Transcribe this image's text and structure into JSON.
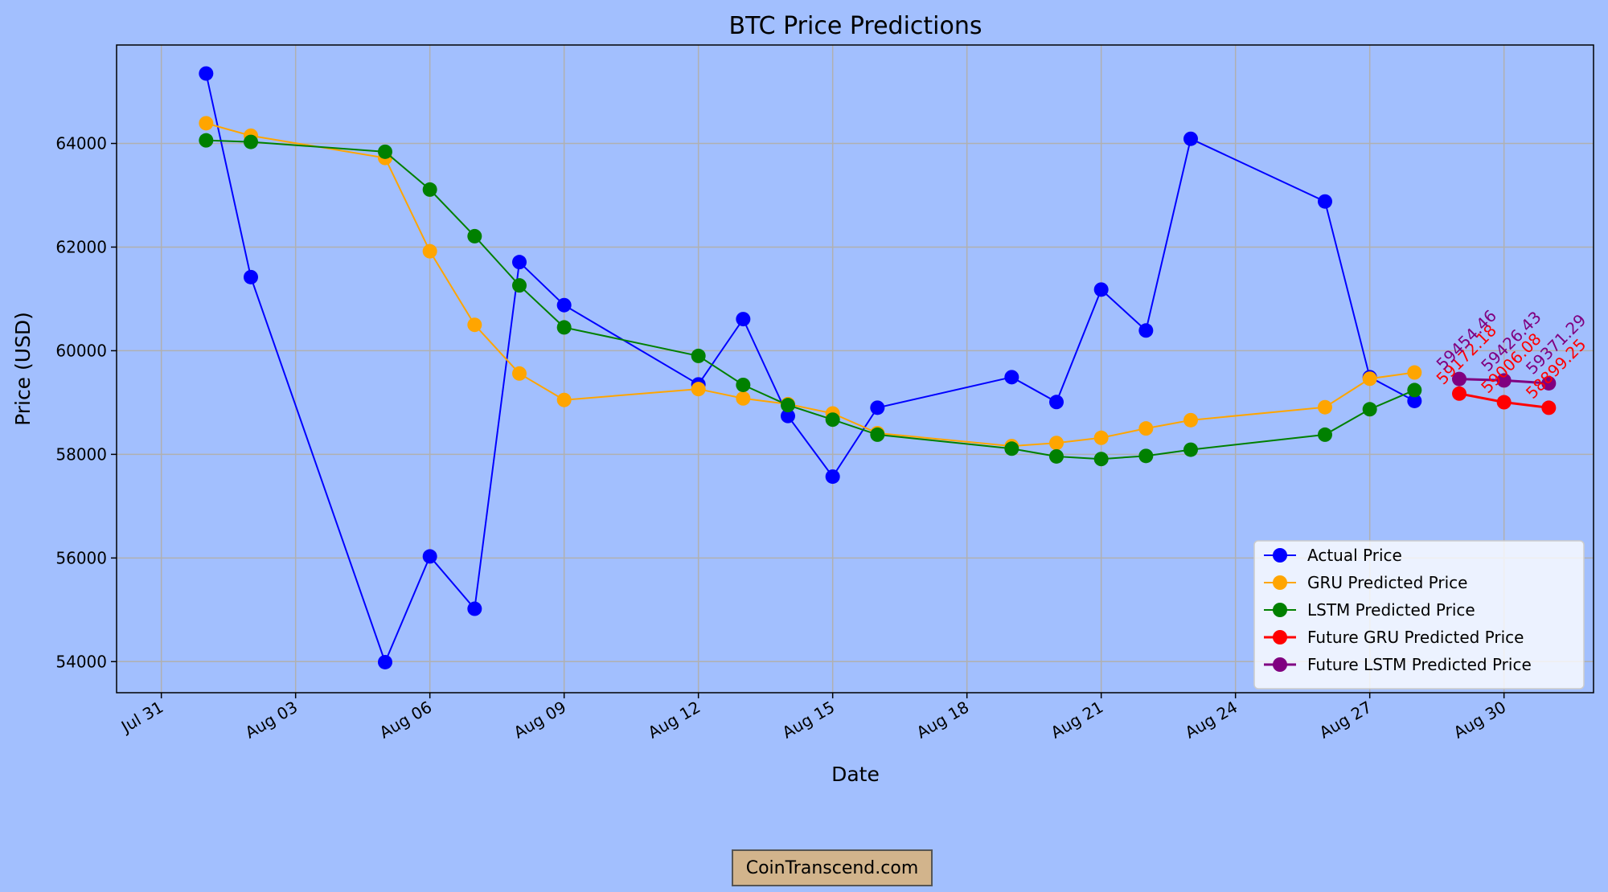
{
  "chart_data": {
    "type": "line",
    "title": "BTC Price Predictions",
    "xlabel": "Date",
    "ylabel": "Price (USD)",
    "grid": true,
    "legend_position": "bottom-right",
    "x_tick_labels": [
      "Jul 31",
      "Aug 03",
      "Aug 06",
      "Aug 09",
      "Aug 12",
      "Aug 15",
      "Aug 18",
      "Aug 21",
      "Aug 24",
      "Aug 27",
      "Aug 30"
    ],
    "x_tick_dates": [
      "2024-07-31",
      "2024-08-03",
      "2024-08-06",
      "2024-08-09",
      "2024-08-12",
      "2024-08-15",
      "2024-08-18",
      "2024-08-21",
      "2024-08-24",
      "2024-08-27",
      "2024-08-30"
    ],
    "xlim": [
      "2024-07-30",
      "2024-09-01"
    ],
    "y_ticks": [
      54000,
      56000,
      58000,
      60000,
      62000,
      64000
    ],
    "ylim": [
      53400,
      65900
    ],
    "series": [
      {
        "name": "Actual Price",
        "color": "#0000ff",
        "points": [
          [
            "2024-08-01",
            65350
          ],
          [
            "2024-08-02",
            61420
          ],
          [
            "2024-08-05",
            53990
          ],
          [
            "2024-08-06",
            56030
          ],
          [
            "2024-08-07",
            55020
          ],
          [
            "2024-08-08",
            61710
          ],
          [
            "2024-08-09",
            60880
          ],
          [
            "2024-08-12",
            59350
          ],
          [
            "2024-08-13",
            60610
          ],
          [
            "2024-08-14",
            58740
          ],
          [
            "2024-08-15",
            57570
          ],
          [
            "2024-08-16",
            58900
          ],
          [
            "2024-08-19",
            59490
          ],
          [
            "2024-08-20",
            59010
          ],
          [
            "2024-08-21",
            61180
          ],
          [
            "2024-08-22",
            60390
          ],
          [
            "2024-08-23",
            64090
          ],
          [
            "2024-08-26",
            62880
          ],
          [
            "2024-08-27",
            59490
          ],
          [
            "2024-08-28",
            59030
          ]
        ]
      },
      {
        "name": "GRU Predicted Price",
        "color": "#ffa500",
        "points": [
          [
            "2024-08-01",
            64390
          ],
          [
            "2024-08-02",
            64150
          ],
          [
            "2024-08-05",
            63720
          ],
          [
            "2024-08-06",
            61920
          ],
          [
            "2024-08-07",
            60500
          ],
          [
            "2024-08-08",
            59560
          ],
          [
            "2024-08-09",
            59050
          ],
          [
            "2024-08-12",
            59260
          ],
          [
            "2024-08-13",
            59080
          ],
          [
            "2024-08-14",
            58970
          ],
          [
            "2024-08-15",
            58790
          ],
          [
            "2024-08-16",
            58410
          ],
          [
            "2024-08-19",
            58160
          ],
          [
            "2024-08-20",
            58220
          ],
          [
            "2024-08-21",
            58320
          ],
          [
            "2024-08-22",
            58500
          ],
          [
            "2024-08-23",
            58660
          ],
          [
            "2024-08-26",
            58910
          ],
          [
            "2024-08-27",
            59460
          ],
          [
            "2024-08-28",
            59580
          ]
        ]
      },
      {
        "name": "LSTM Predicted Price",
        "color": "#008000",
        "points": [
          [
            "2024-08-01",
            64060
          ],
          [
            "2024-08-02",
            64030
          ],
          [
            "2024-08-05",
            63840
          ],
          [
            "2024-08-06",
            63110
          ],
          [
            "2024-08-07",
            62210
          ],
          [
            "2024-08-08",
            61260
          ],
          [
            "2024-08-09",
            60450
          ],
          [
            "2024-08-12",
            59900
          ],
          [
            "2024-08-13",
            59340
          ],
          [
            "2024-08-14",
            58950
          ],
          [
            "2024-08-15",
            58670
          ],
          [
            "2024-08-16",
            58380
          ],
          [
            "2024-08-19",
            58110
          ],
          [
            "2024-08-20",
            57960
          ],
          [
            "2024-08-21",
            57910
          ],
          [
            "2024-08-22",
            57970
          ],
          [
            "2024-08-23",
            58090
          ],
          [
            "2024-08-26",
            58380
          ],
          [
            "2024-08-27",
            58870
          ],
          [
            "2024-08-28",
            59240
          ]
        ]
      },
      {
        "name": "Future GRU Predicted Price",
        "color": "#ff0000",
        "points": [
          [
            "2024-08-29",
            59172.18
          ],
          [
            "2024-08-30",
            59006.08
          ],
          [
            "2024-08-31",
            58899.25
          ]
        ],
        "labels": [
          "59172.18",
          "59006.08",
          "58899.25"
        ]
      },
      {
        "name": "Future LSTM Predicted Price",
        "color": "#800080",
        "points": [
          [
            "2024-08-29",
            59454.46
          ],
          [
            "2024-08-30",
            59426.43
          ],
          [
            "2024-08-31",
            59371.29
          ]
        ],
        "labels": [
          "59454.46",
          "59426.43",
          "59371.29"
        ]
      }
    ]
  },
  "watermark": "CoinTranscend.com"
}
